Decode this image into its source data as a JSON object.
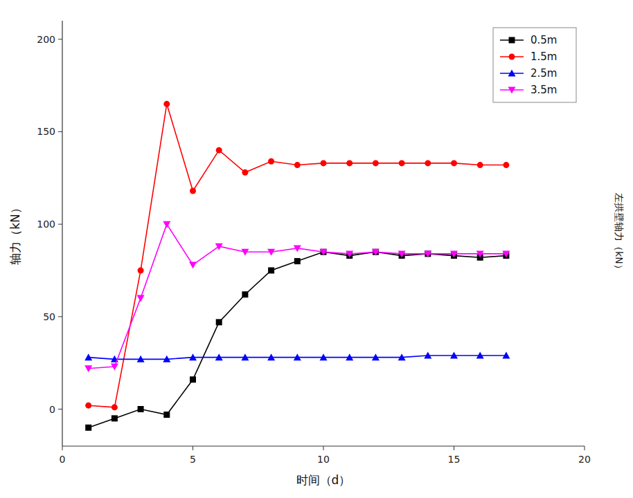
{
  "chart_data": {
    "type": "line",
    "title": "",
    "xlabel": "时间（d）",
    "ylabel": "轴力（kN）",
    "annotations": [
      "左拱壁轴力（kN）"
    ],
    "x": [
      1,
      2,
      3,
      4,
      5,
      6,
      7,
      8,
      9,
      10,
      11,
      12,
      13,
      14,
      15,
      16,
      17
    ],
    "series": [
      {
        "name": "0.5m",
        "color": "#000000",
        "marker": "square",
        "values": [
          -10,
          -5,
          0,
          -3,
          16,
          47,
          62,
          75,
          80,
          85,
          83,
          85,
          83,
          84,
          83,
          82,
          83
        ]
      },
      {
        "name": "1.5m",
        "color": "#ff0000",
        "marker": "circle",
        "values": [
          2,
          1,
          75,
          165,
          118,
          140,
          128,
          134,
          132,
          133,
          133,
          133,
          133,
          133,
          133,
          132,
          132
        ]
      },
      {
        "name": "2.5m",
        "color": "#0000ff",
        "marker": "triangle-up",
        "values": [
          28,
          27,
          27,
          27,
          28,
          28,
          28,
          28,
          28,
          28,
          28,
          28,
          28,
          29,
          29,
          29,
          29
        ]
      },
      {
        "name": "3.5m",
        "color": "#ff00ff",
        "marker": "triangle-down",
        "values": [
          22,
          23,
          60,
          100,
          78,
          88,
          85,
          85,
          87,
          85,
          84,
          85,
          84,
          84,
          84,
          84,
          84
        ]
      }
    ],
    "xlim": [
      0,
      20
    ],
    "ylim": [
      -20,
      210
    ],
    "xticks": [
      0,
      5,
      10,
      15,
      20
    ],
    "yticks": [
      0,
      50,
      100,
      150,
      200
    ],
    "grid": false,
    "legend": "upper right"
  }
}
